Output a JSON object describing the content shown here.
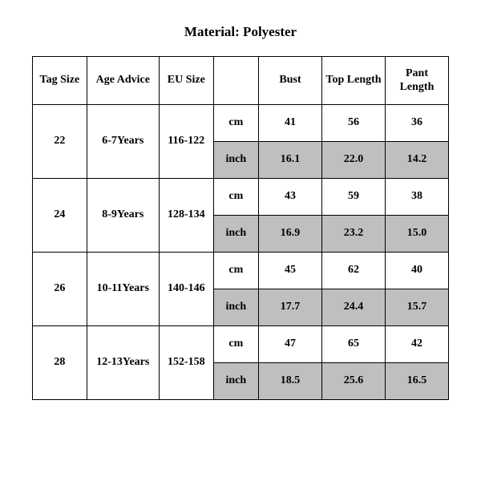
{
  "title": "Material: Polyester",
  "table": {
    "columns": [
      "Tag Size",
      "Age Advice",
      "EU Size",
      "",
      "Bust",
      "Top Length",
      "Pant Length"
    ],
    "unit_labels": {
      "cm": "cm",
      "inch": "inch"
    },
    "rows": [
      {
        "tag_size": "22",
        "age_advice": "6-7Years",
        "eu_size": "116-122",
        "cm": {
          "bust": "41",
          "top_length": "56",
          "pant_length": "36"
        },
        "inch": {
          "bust": "16.1",
          "top_length": "22.0",
          "pant_length": "14.2"
        }
      },
      {
        "tag_size": "24",
        "age_advice": "8-9Years",
        "eu_size": "128-134",
        "cm": {
          "bust": "43",
          "top_length": "59",
          "pant_length": "38"
        },
        "inch": {
          "bust": "16.9",
          "top_length": "23.2",
          "pant_length": "15.0"
        }
      },
      {
        "tag_size": "26",
        "age_advice": "10-11Years",
        "eu_size": "140-146",
        "cm": {
          "bust": "45",
          "top_length": "62",
          "pant_length": "40"
        },
        "inch": {
          "bust": "17.7",
          "top_length": "24.4",
          "pant_length": "15.7"
        }
      },
      {
        "tag_size": "28",
        "age_advice": "12-13Years",
        "eu_size": "152-158",
        "cm": {
          "bust": "47",
          "top_length": "65",
          "pant_length": "42"
        },
        "inch": {
          "bust": "18.5",
          "top_length": "25.6",
          "pant_length": "16.5"
        }
      }
    ],
    "shaded_color": "#bfbfbf",
    "border_color": "#000000",
    "background_color": "#ffffff",
    "font_family": "Times New Roman",
    "header_fontsize": 14,
    "title_fontsize": 17
  }
}
